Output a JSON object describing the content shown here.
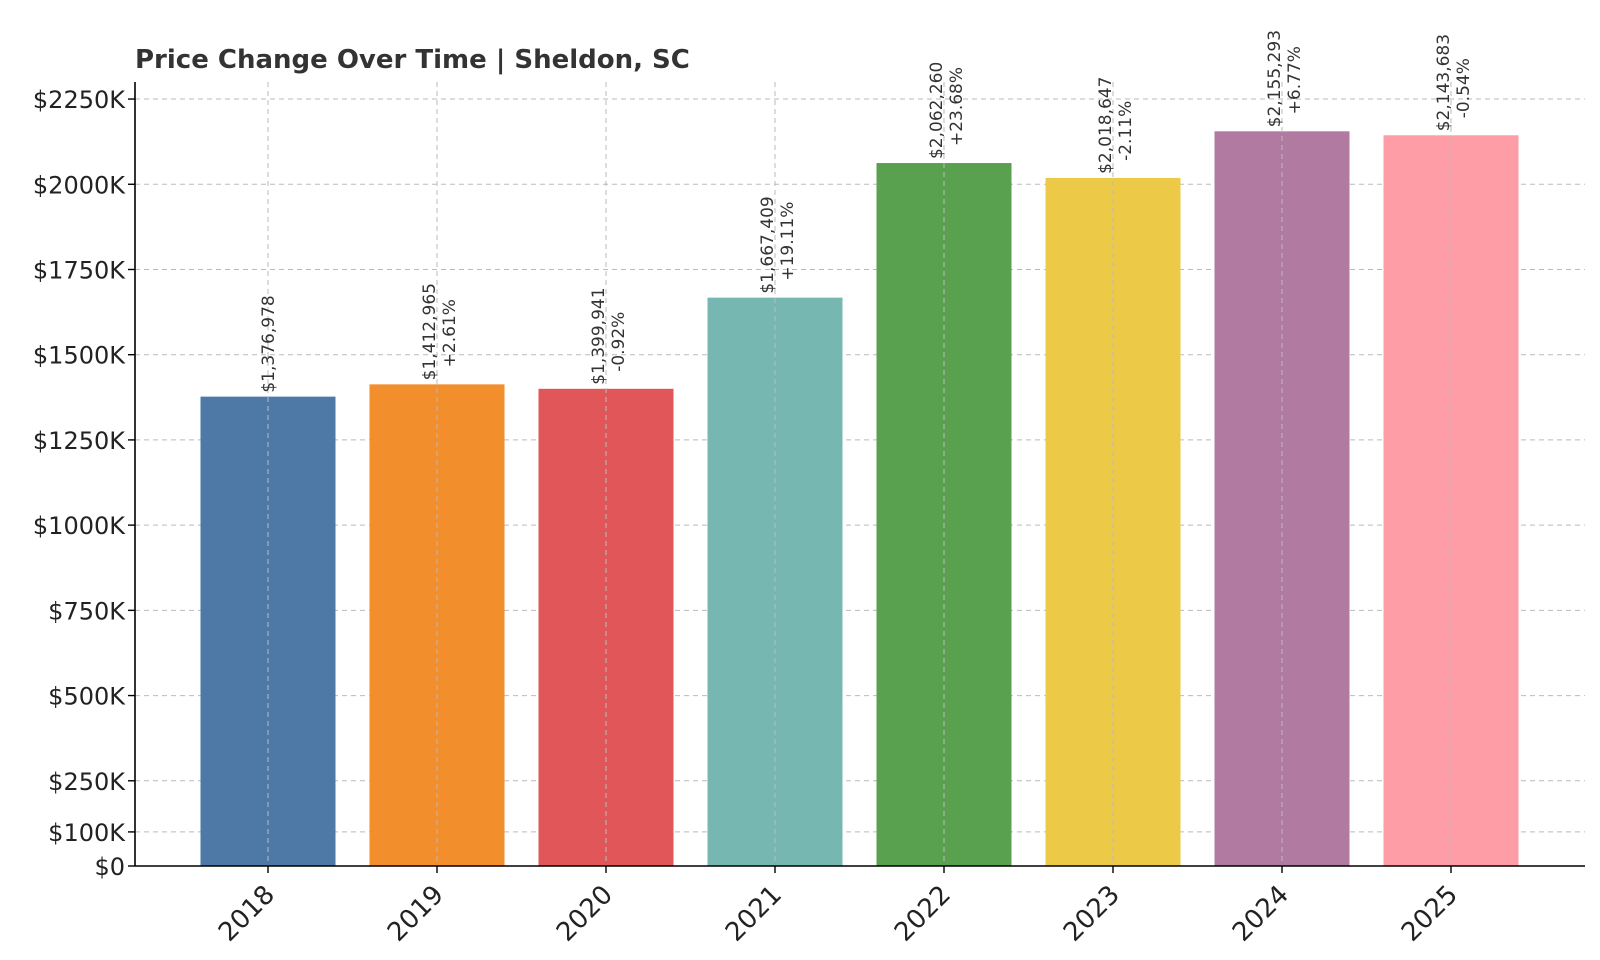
{
  "chart_data": {
    "type": "bar",
    "title": "Price Change Over Time | Sheldon, SC",
    "xlabel": "",
    "ylabel": "",
    "categories": [
      "2018",
      "2019",
      "2020",
      "2021",
      "2022",
      "2023",
      "2024",
      "2025"
    ],
    "values": [
      1376978,
      1412965,
      1399941,
      1667409,
      2062260,
      2018647,
      2155293,
      2143683
    ],
    "value_labels": [
      "$1,376,978",
      "$1,412,965",
      "$1,399,941",
      "$1,667,409",
      "$2,062,260",
      "$2,018,647",
      "$2,155,293",
      "$2,143,683"
    ],
    "change_labels": [
      "",
      "+2.61%",
      "-0.92%",
      "+19.11%",
      "+23.68%",
      "-2.11%",
      "+6.77%",
      "-0.54%"
    ],
    "colors": [
      "#4e79a7",
      "#f28e2b",
      "#e15759",
      "#76b7b2",
      "#59a14f",
      "#edc948",
      "#b07aa1",
      "#ff9da7"
    ],
    "yticks": [
      0,
      100000,
      250000,
      500000,
      750000,
      1000000,
      1250000,
      1500000,
      1750000,
      2000000,
      2250000
    ],
    "ytick_labels": [
      "$0",
      "$100K",
      "$250K",
      "$500K",
      "$750K",
      "$1000K",
      "$1250K",
      "$1500K",
      "$1750K",
      "$2000K",
      "$2250K"
    ],
    "ylim": [
      0,
      2300000
    ],
    "grid": true,
    "legend": false
  }
}
